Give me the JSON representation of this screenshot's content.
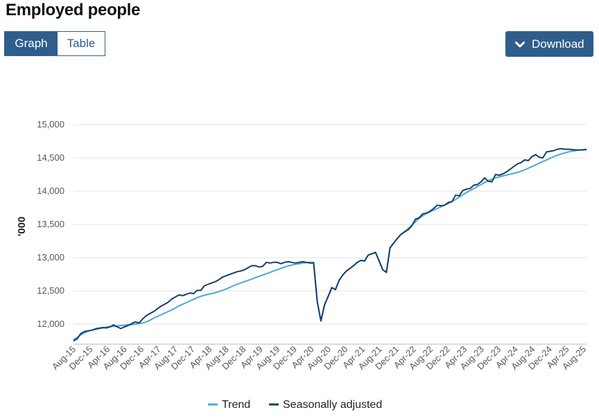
{
  "page": {
    "title": "Employed people"
  },
  "tabs": [
    {
      "label": "Graph",
      "active": true
    },
    {
      "label": "Table",
      "active": false
    }
  ],
  "download": {
    "label": "Download",
    "icon": "chevron-down-icon"
  },
  "colors": {
    "accent": "#2f5d8c",
    "trend": "#4ea5d9",
    "seasonally_adjusted": "#123f6b"
  },
  "chart_data": {
    "type": "line",
    "ylabel": "'000",
    "ylim": [
      11700,
      15000
    ],
    "yticks": [
      12000,
      12500,
      13000,
      13500,
      14000,
      14500,
      15000
    ],
    "ytick_labels": [
      "12,000",
      "12,500",
      "13,000",
      "13,500",
      "14,000",
      "14,500",
      "15,000"
    ],
    "xtick_labels": [
      "Aug-15",
      "Dec-15",
      "Apr-16",
      "Aug-16",
      "Dec-16",
      "Apr-17",
      "Aug-17",
      "Dec-17",
      "Apr-18",
      "Aug-18",
      "Dec-18",
      "Apr-19",
      "Aug-19",
      "Dec-19",
      "Apr-20",
      "Aug-20",
      "Dec-20",
      "Apr-21",
      "Aug-21",
      "Dec-21",
      "Apr-22",
      "Aug-22",
      "Dec-22",
      "Apr-23",
      "Aug-23",
      "Dec-23",
      "Apr-24",
      "Aug-24",
      "Dec-24",
      "Apr-25",
      "Aug-25"
    ],
    "x_start": "Aug-15",
    "x_end": "Aug-25",
    "grid": true,
    "legend_position": "bottom",
    "series": [
      {
        "name": "Trend",
        "values": [
          11770,
          11800,
          11840,
          11870,
          11895,
          11910,
          11920,
          11932,
          11945,
          11955,
          11962,
          11968,
          11975,
          11980,
          11985,
          11990,
          11995,
          12002,
          12010,
          12020,
          12035,
          12060,
          12090,
          12115,
          12140,
          12165,
          12190,
          12215,
          12245,
          12275,
          12300,
          12325,
          12350,
          12375,
          12400,
          12420,
          12435,
          12450,
          12462,
          12475,
          12490,
          12510,
          12530,
          12555,
          12580,
          12600,
          12620,
          12640,
          12660,
          12680,
          12700,
          12720,
          12740,
          12760,
          12780,
          12800,
          12820,
          12840,
          12860,
          12875,
          12890,
          12900,
          12910,
          12920,
          12925,
          12930,
          12930,
          12340,
          12050,
          12290,
          12420,
          12550,
          12520,
          12660,
          12740,
          12800,
          12840,
          12880,
          12930,
          12960,
          12950,
          13040,
          13060,
          13080,
          12950,
          12820,
          12780,
          13150,
          13220,
          13290,
          13350,
          13390,
          13440,
          13490,
          13540,
          13590,
          13630,
          13665,
          13690,
          13715,
          13740,
          13765,
          13790,
          13815,
          13845,
          13875,
          13910,
          13945,
          13980,
          14010,
          14040,
          14070,
          14100,
          14130,
          14155,
          14180,
          14200,
          14215,
          14230,
          14242,
          14255,
          14268,
          14282,
          14300,
          14320,
          14345,
          14370,
          14395,
          14420,
          14445,
          14470,
          14495,
          14520,
          14540,
          14560,
          14575,
          14590,
          14600,
          14610,
          14618,
          14625,
          14630
        ]
      },
      {
        "name": "Seasonally adjusted",
        "values": [
          11750,
          11780,
          11860,
          11890,
          11900,
          11910,
          11930,
          11940,
          11950,
          11945,
          11960,
          11990,
          11960,
          11935,
          11960,
          11980,
          12010,
          12035,
          12020,
          12080,
          12130,
          12160,
          12190,
          12230,
          12270,
          12300,
          12330,
          12380,
          12410,
          12440,
          12430,
          12450,
          12470,
          12460,
          12510,
          12510,
          12580,
          12600,
          12620,
          12640,
          12670,
          12710,
          12730,
          12750,
          12770,
          12790,
          12800,
          12820,
          12850,
          12880,
          12880,
          12860,
          12870,
          12930,
          12920,
          12930,
          12930,
          12910,
          12930,
          12940,
          12930,
          12920,
          12930,
          12940,
          12930,
          12920,
          12920,
          12340,
          12050,
          12290,
          12420,
          12550,
          12520,
          12660,
          12740,
          12800,
          12840,
          12880,
          12930,
          12960,
          12950,
          13040,
          13060,
          13080,
          12950,
          12820,
          12780,
          13150,
          13220,
          13290,
          13350,
          13390,
          13420,
          13480,
          13580,
          13600,
          13660,
          13670,
          13700,
          13740,
          13790,
          13780,
          13790,
          13830,
          13840,
          13940,
          13930,
          14010,
          14030,
          14040,
          14090,
          14100,
          14140,
          14200,
          14150,
          14140,
          14250,
          14240,
          14260,
          14290,
          14330,
          14370,
          14410,
          14430,
          14470,
          14460,
          14520,
          14550,
          14510,
          14500,
          14590,
          14600,
          14610,
          14630,
          14640,
          14630,
          14630,
          14625,
          14620,
          14620,
          14620,
          14625
        ]
      }
    ]
  }
}
